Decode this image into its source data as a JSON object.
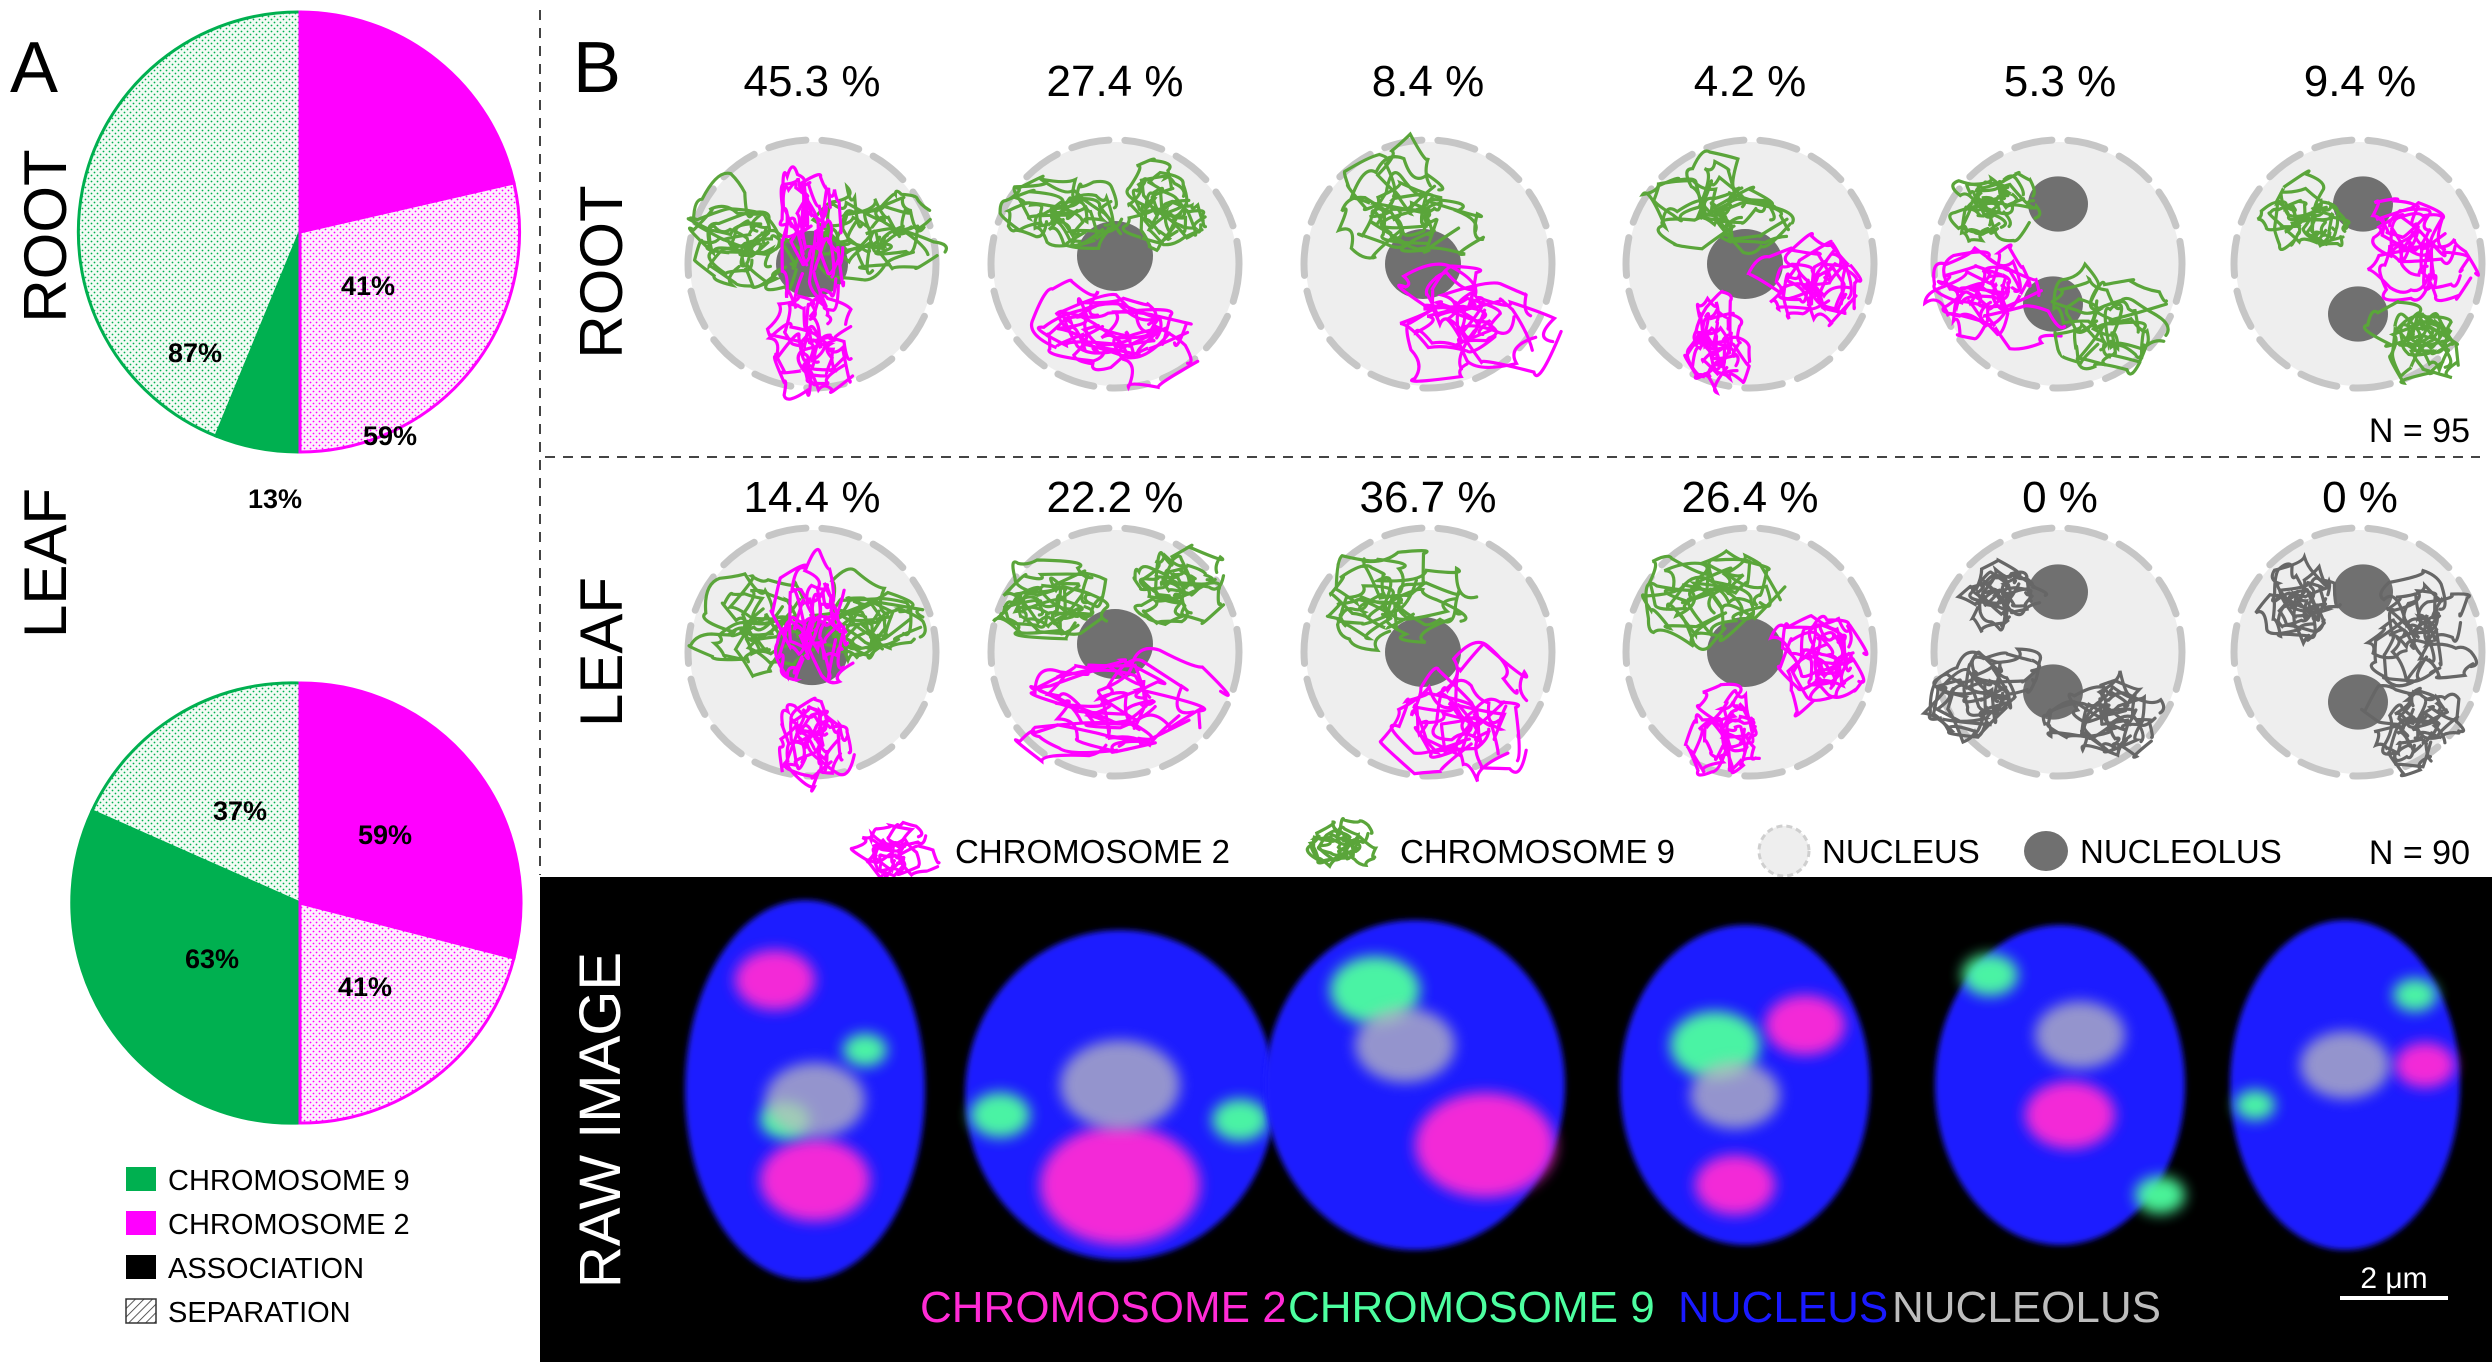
{
  "panel_a": {
    "label": "A",
    "root_label": "ROOT",
    "leaf_label": "LEAF",
    "root_pie": {
      "chr2_association_pct": "41%",
      "chr2_separation_pct": "59%",
      "chr9_association_pct": "13%",
      "chr9_separation_pct": "87%"
    },
    "leaf_pie": {
      "chr2_association_pct": "59%",
      "chr2_separation_pct": "41%",
      "chr9_association_pct": "63%",
      "chr9_separation_pct": "37%"
    },
    "legend": {
      "chr9": "CHROMOSOME 9",
      "chr2": "CHROMOSOME 2",
      "association": "ASSOCIATION",
      "separation": "SEPARATION"
    }
  },
  "panel_b": {
    "label": "B",
    "root_row": {
      "label": "ROOT",
      "percentages": [
        "45.3 %",
        "27.4 %",
        "8.4 %",
        "4.2 %",
        "5.3 %",
        "9.4 %"
      ],
      "n": "N = 95"
    },
    "leaf_row": {
      "label": "LEAF",
      "percentages": [
        "14.4 %",
        "22.2 %",
        "36.7 %",
        "26.4 %",
        "0 %",
        "0 %"
      ],
      "n": "N = 90"
    },
    "legend": {
      "chr2": "CHROMOSOME 2",
      "chr9": "CHROMOSOME 9",
      "nucleus": "NUCLEUS",
      "nucleolus": "NUCLEOLUS"
    }
  },
  "raw_image": {
    "label": "RAW IMAGE",
    "legend": {
      "chr2": "CHROMOSOME 2",
      "chr9": "CHROMOSOME 9",
      "nucleus": "NUCLEUS",
      "nucleolus": "NUCLEOLUS"
    },
    "scale_bar": "2 μm"
  },
  "colors": {
    "chr2": "#ff00ff",
    "chr9": "#5aa53a",
    "nucleus_fill": "#eeeeee",
    "nucleolus": "#707070",
    "pie_green": "#00b050",
    "raw_chr2": "#ff2bd5",
    "raw_chr9": "#4dffa0",
    "raw_nucleus": "#1a1aff",
    "raw_nucleolus": "#bdbdbd"
  }
}
